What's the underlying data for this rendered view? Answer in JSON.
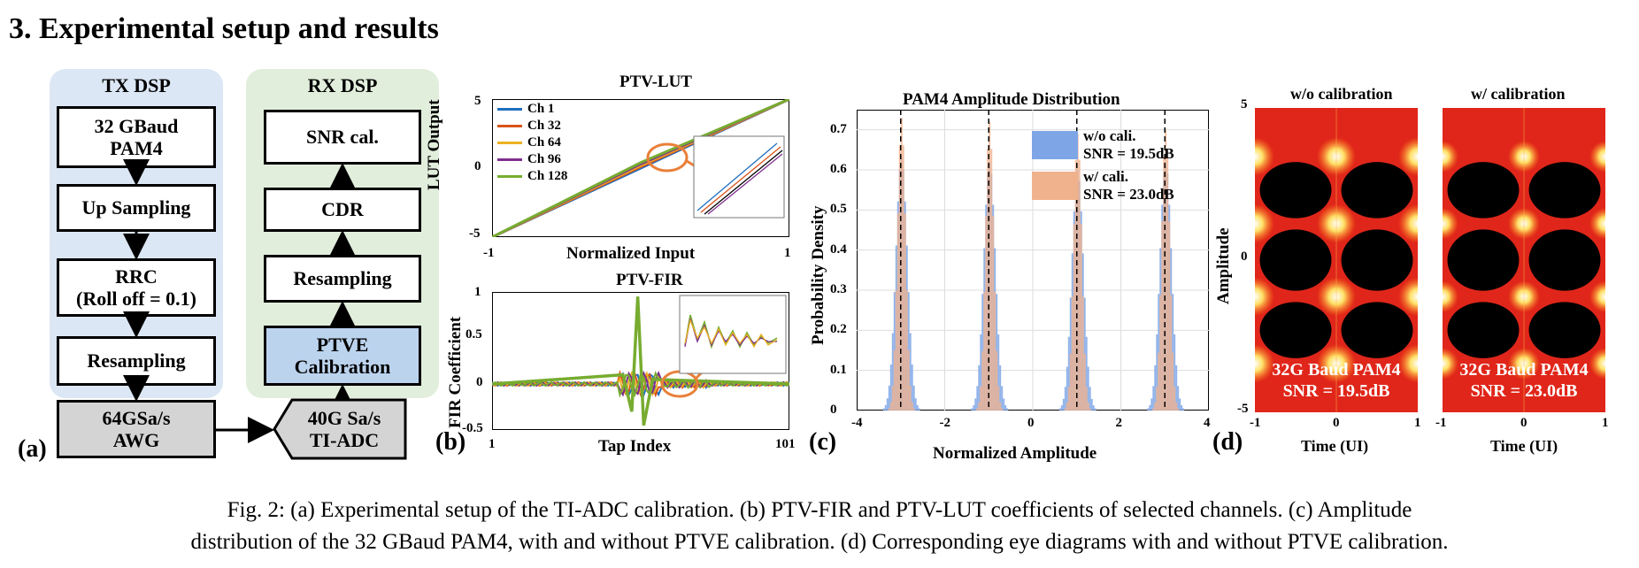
{
  "section": {
    "title": "3. Experimental setup and results"
  },
  "setup": {
    "tx_title": "TX DSP",
    "rx_title": "RX DSP",
    "tx_blocks": [
      "32 GBaud\nPAM4",
      "Up Sampling",
      "RRC\n(Roll off = 0.1)",
      "Resampling"
    ],
    "rx_blocks": [
      "SNR cal.",
      "CDR",
      "Resampling",
      "PTVE\nCalibration"
    ],
    "awg": "64GSa/s\nAWG",
    "adc": "40G Sa/s\nTI-ADC",
    "label": "(a)"
  },
  "lut_plot": {
    "title": "PTV-LUT",
    "ylabel": "LUT Output",
    "xlabel": "Normalized Input",
    "yticks": [
      "5",
      "0",
      "-5"
    ],
    "xticks": [
      "-1",
      "1"
    ],
    "label": "(b)"
  },
  "fir_plot": {
    "title": "PTV-FIR",
    "ylabel": "FIR Coefficient",
    "xlabel": "Tap Index",
    "yticks": [
      "1",
      "0.5",
      "0",
      "-0.5"
    ],
    "xticks": [
      "1",
      "101"
    ]
  },
  "hist_plot": {
    "title": "PAM4 Amplitude Distribution",
    "ylabel": "Probability Density",
    "xlabel": "Normalized Amplitude",
    "yticks": [
      "0.7",
      "0.6",
      "0.5",
      "0.4",
      "0.3",
      "0.2",
      "0.1",
      "0"
    ],
    "xticks": [
      "-4",
      "-2",
      "0",
      "2",
      "4"
    ],
    "legend": [
      {
        "text": "w/o cali.\nSNR = 19.5dB",
        "color": "#7ea6e6"
      },
      {
        "text": "w/ cali.\nSNR = 23.0dB",
        "color": "#f0b28d"
      }
    ],
    "label": "(c)"
  },
  "eye_plot": {
    "ylabel": "Amplitude",
    "xlabel": "Time (UI)",
    "left_title": "w/o calibration",
    "right_title": "w/ calibration",
    "left_text": "32G Baud PAM4\nSNR = 19.5dB",
    "right_text": "32G Baud PAM4\nSNR = 23.0dB",
    "yticks": [
      "5",
      "0",
      "-5"
    ],
    "xticks": [
      "-1",
      "0",
      "1"
    ],
    "label": "(d)"
  },
  "chart_data": [
    {
      "type": "line",
      "title": "PTV-LUT",
      "xlabel": "Normalized Input",
      "ylabel": "LUT Output",
      "xlim": [
        -1,
        1
      ],
      "ylim": [
        -5,
        5
      ],
      "series": [
        {
          "name": "Ch 1",
          "color": "#1f6fbf",
          "x": [
            -1,
            0,
            1
          ],
          "y": [
            -5,
            0,
            5
          ]
        },
        {
          "name": "Ch 32",
          "color": "#d9541a",
          "x": [
            -1,
            0,
            1
          ],
          "y": [
            -5,
            0.1,
            5
          ]
        },
        {
          "name": "Ch 64",
          "color": "#edb120",
          "x": [
            -1,
            0,
            1
          ],
          "y": [
            -5,
            0.2,
            5
          ]
        },
        {
          "name": "Ch 96",
          "color": "#7e2f8e",
          "x": [
            -1,
            0,
            1
          ],
          "y": [
            -5,
            0.3,
            5
          ]
        },
        {
          "name": "Ch 128",
          "color": "#77ac30",
          "x": [
            -1,
            0,
            1
          ],
          "y": [
            -5,
            0.4,
            5
          ]
        }
      ]
    },
    {
      "type": "line",
      "title": "PTV-FIR",
      "xlabel": "Tap Index",
      "ylabel": "FIR Coefficient",
      "xlim": [
        1,
        101
      ],
      "ylim": [
        -0.5,
        1
      ],
      "series": [
        {
          "name": "Ch 128",
          "x": [
            1,
            45,
            48,
            50,
            52,
            55,
            101
          ],
          "y": [
            0,
            0.1,
            -0.3,
            0.95,
            -0.45,
            0.05,
            0
          ]
        }
      ]
    },
    {
      "type": "bar",
      "title": "PAM4 Amplitude Distribution",
      "xlabel": "Normalized Amplitude",
      "ylabel": "Probability Density",
      "xlim": [
        -4,
        4
      ],
      "ylim": [
        0,
        0.75
      ],
      "series": [
        {
          "name": "w/o cali.",
          "x": [
            -3,
            -1,
            1,
            3
          ],
          "y": [
            0.63,
            0.62,
            0.6,
            0.62
          ]
        },
        {
          "name": "w/ cali.",
          "x": [
            -3,
            -1,
            1,
            3
          ],
          "y": [
            0.73,
            0.72,
            0.69,
            0.7
          ]
        }
      ]
    }
  ],
  "caption": [
    "Fig. 2: (a) Experimental setup of the TI-ADC calibration. (b) PTV-FIR and PTV-LUT coefficients of selected channels. (c) Amplitude",
    "distribution of the 32 GBaud PAM4, with and without PTVE calibration. (d) Corresponding eye diagrams with and without PTVE calibration."
  ]
}
